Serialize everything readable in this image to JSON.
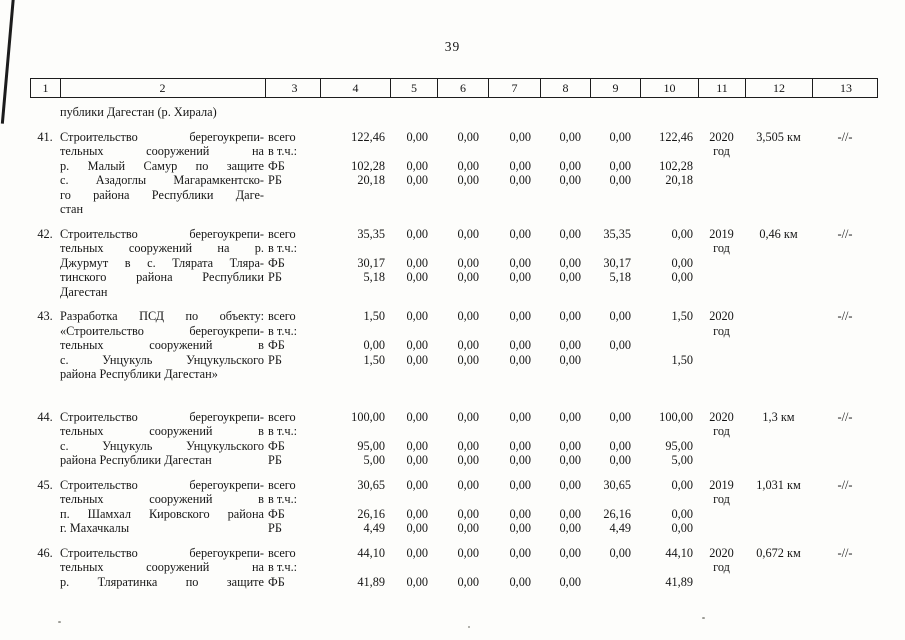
{
  "page": {
    "number": "39"
  },
  "table": {
    "header_cols": [
      "1",
      "2",
      "3",
      "4",
      "5",
      "6",
      "7",
      "8",
      "9",
      "10",
      "11",
      "12",
      "13"
    ],
    "carryover_text": "публики Дагестан (р. Хирала)",
    "rows": [
      {
        "num": "41.",
        "name_lines": [
          "Строительство берегоукрепи-",
          "тельных сооружений на",
          "р. Малый Самур по защите",
          "с. Азадоглы Магарамкентско-",
          "го района Республики Даге-",
          "стан"
        ],
        "src_lines": [
          "всего",
          "в т.ч.:",
          "ФБ",
          "РБ"
        ],
        "value_lines": [
          [
            "122,46",
            "0,00",
            "0,00",
            "0,00",
            "0,00",
            "0,00",
            "122,46"
          ],
          [
            "",
            "",
            "",
            "",
            "",
            "",
            ""
          ],
          [
            "102,28",
            "0,00",
            "0,00",
            "0,00",
            "0,00",
            "0,00",
            "102,28"
          ],
          [
            "20,18",
            "0,00",
            "0,00",
            "0,00",
            "0,00",
            "0,00",
            "20,18"
          ]
        ],
        "year_lines": [
          "2020",
          "год"
        ],
        "length": "3,505 км",
        "note": "-//-"
      },
      {
        "num": "42.",
        "name_lines": [
          "Строительство берегоукрепи-",
          "тельных сооружений на р.",
          "Джурмут в с. Тлярата Тляра-",
          "тинского района Республики",
          "Дагестан"
        ],
        "src_lines": [
          "всего",
          "в т.ч.:",
          "ФБ",
          "РБ"
        ],
        "value_lines": [
          [
            "35,35",
            "0,00",
            "0,00",
            "0,00",
            "0,00",
            "35,35",
            "0,00"
          ],
          [
            "",
            "",
            "",
            "",
            "",
            "",
            ""
          ],
          [
            "30,17",
            "0,00",
            "0,00",
            "0,00",
            "0,00",
            "30,17",
            "0,00"
          ],
          [
            "5,18",
            "0,00",
            "0,00",
            "0,00",
            "0,00",
            "5,18",
            "0,00"
          ]
        ],
        "year_lines": [
          "2019",
          "год"
        ],
        "length": "0,46 км",
        "note": "-//-"
      },
      {
        "num": "43.",
        "name_lines": [
          "Разработка ПСД по объекту:",
          "«Строительство берегоукрепи-",
          "тельных сооружений в",
          "с. Унцукуль Унцукульского",
          "района Республики Дагестан»"
        ],
        "src_lines": [
          "всего",
          "в т.ч.:",
          "ФБ",
          "РБ"
        ],
        "value_lines": [
          [
            "1,50",
            "0,00",
            "0,00",
            "0,00",
            "0,00",
            "0,00",
            "1,50"
          ],
          [
            "",
            "",
            "",
            "",
            "",
            "",
            ""
          ],
          [
            "0,00",
            "0,00",
            "0,00",
            "0,00",
            "0,00",
            "0,00",
            ""
          ],
          [
            "1,50",
            "0,00",
            "0,00",
            "0,00",
            "0,00",
            "",
            "1,50"
          ]
        ],
        "year_lines": [
          "2020",
          "год"
        ],
        "length": "",
        "note": "-//-"
      },
      {
        "num": "44.",
        "name_lines": [
          "Строительство берегоукрепи-",
          "тельных сооружений в",
          "с. Унцукуль Унцукульского",
          "района Республики Дагестан"
        ],
        "src_lines": [
          "всего",
          "в т.ч.:",
          "ФБ",
          "РБ"
        ],
        "value_lines": [
          [
            "100,00",
            "0,00",
            "0,00",
            "0,00",
            "0,00",
            "0,00",
            "100,00"
          ],
          [
            "",
            "",
            "",
            "",
            "",
            "",
            ""
          ],
          [
            "95,00",
            "0,00",
            "0,00",
            "0,00",
            "0,00",
            "0,00",
            "95,00"
          ],
          [
            "5,00",
            "0,00",
            "0,00",
            "0,00",
            "0,00",
            "0,00",
            "5,00"
          ]
        ],
        "year_lines": [
          "2020",
          "год"
        ],
        "length": "1,3 км",
        "note": "-//-"
      },
      {
        "num": "45.",
        "name_lines": [
          "Строительство берегоукрепи-",
          "тельных сооружений в",
          "п. Шамхал Кировского района",
          "г. Махачкалы"
        ],
        "src_lines": [
          "всего",
          "в т.ч.:",
          "ФБ",
          "РБ"
        ],
        "value_lines": [
          [
            "30,65",
            "0,00",
            "0,00",
            "0,00",
            "0,00",
            "30,65",
            "0,00"
          ],
          [
            "",
            "",
            "",
            "",
            "",
            "",
            ""
          ],
          [
            "26,16",
            "0,00",
            "0,00",
            "0,00",
            "0,00",
            "26,16",
            "0,00"
          ],
          [
            "4,49",
            "0,00",
            "0,00",
            "0,00",
            "0,00",
            "4,49",
            "0,00"
          ]
        ],
        "year_lines": [
          "2019",
          "год"
        ],
        "length": "1,031 км",
        "note": "-//-"
      },
      {
        "num": "46.",
        "name_lines": [
          "Строительство берегоукрепи-",
          "тельных сооружений на",
          "р. Тляратинка по защите"
        ],
        "src_lines": [
          "всего",
          "в т.ч.:",
          "ФБ"
        ],
        "value_lines": [
          [
            "44,10",
            "0,00",
            "0,00",
            "0,00",
            "0,00",
            "0,00",
            "44,10"
          ],
          [
            "",
            "",
            "",
            "",
            "",
            "",
            ""
          ],
          [
            "41,89",
            "0,00",
            "0,00",
            "0,00",
            "0,00",
            "",
            "41,89"
          ]
        ],
        "year_lines": [
          "2020",
          "год"
        ],
        "length": "0,672 км",
        "note": "-//-"
      }
    ]
  }
}
